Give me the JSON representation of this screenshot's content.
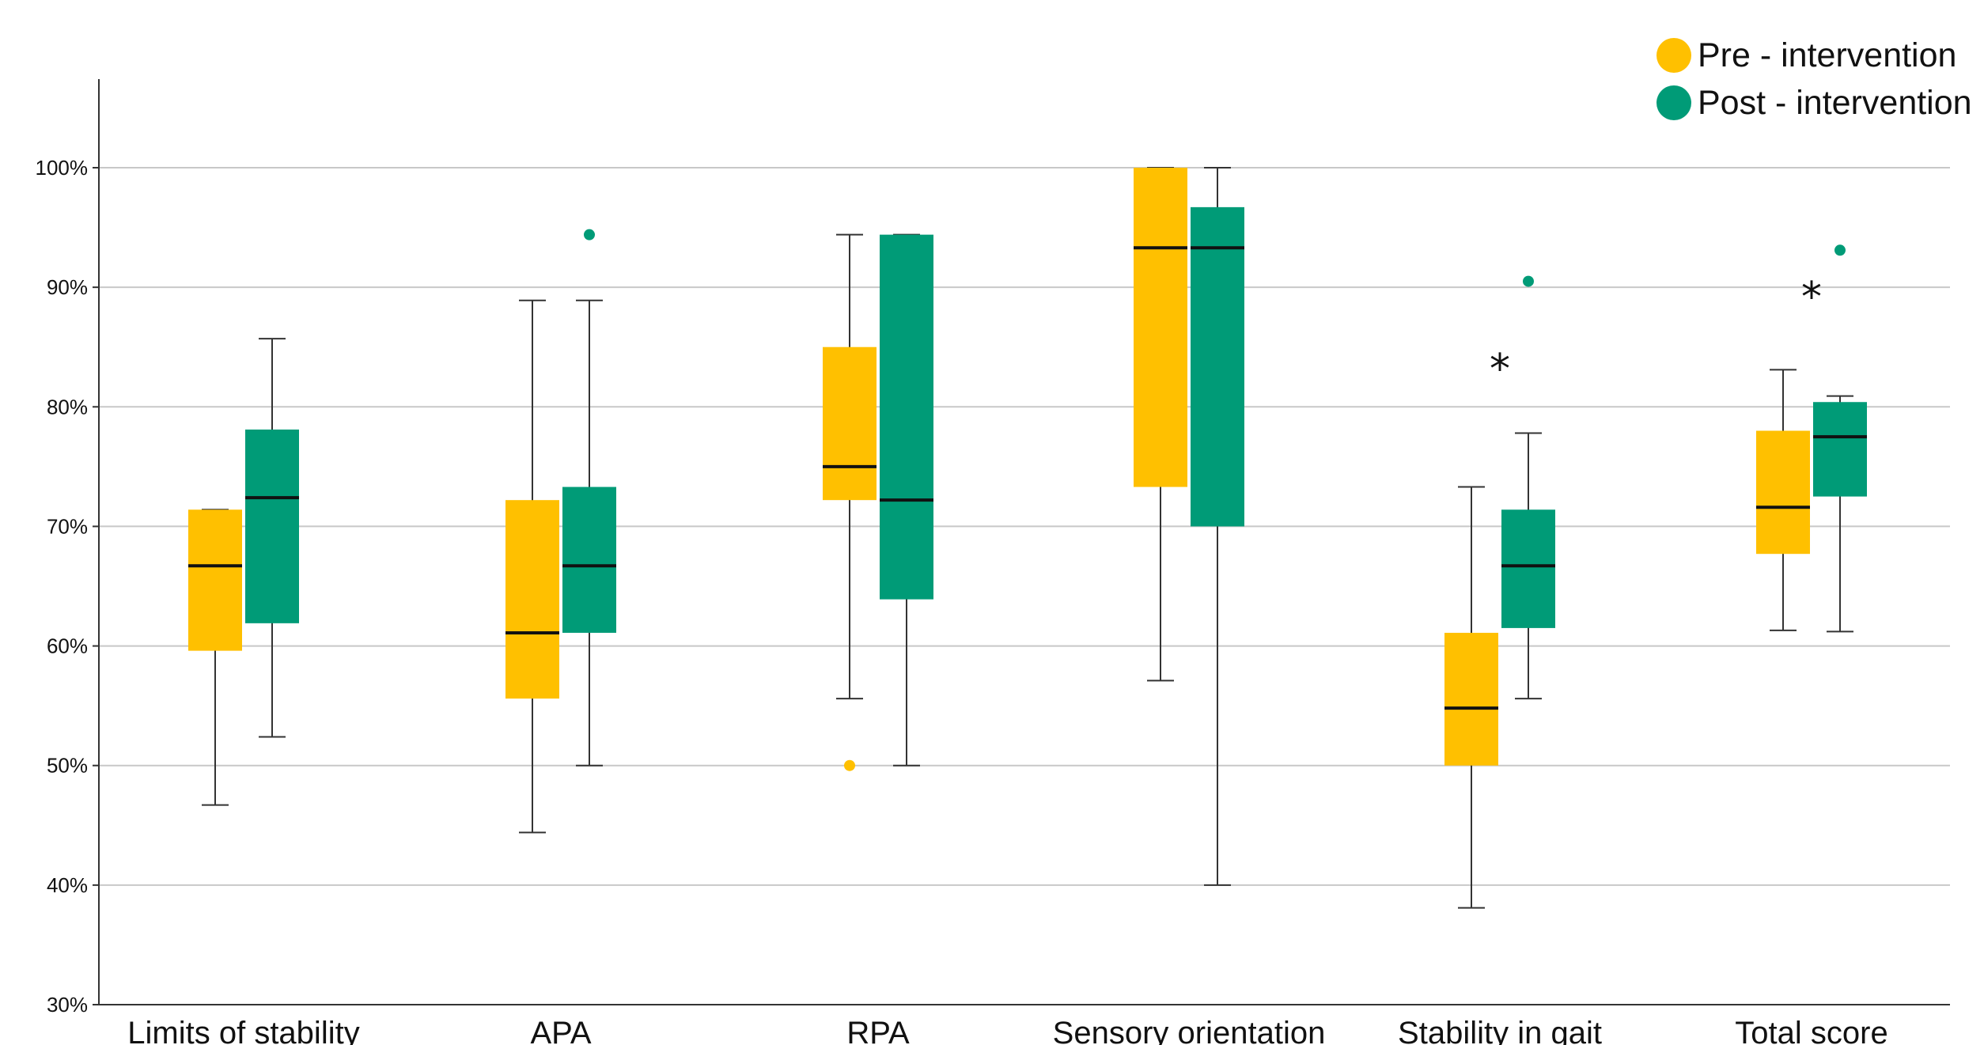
{
  "chart_data": {
    "type": "boxplot",
    "ylim": [
      30,
      100
    ],
    "y_ticks": [
      "30%",
      "40%",
      "50%",
      "60%",
      "70%",
      "80%",
      "90%",
      "100%"
    ],
    "y_tick_values": [
      30,
      40,
      50,
      60,
      70,
      80,
      90,
      100
    ],
    "grid": true,
    "legend_position": "top-right",
    "categories": [
      "Limits of stability",
      "APA",
      "RPA",
      "Sensory orientation",
      "Stability in gait",
      "Total score"
    ],
    "series": [
      {
        "name": "Pre - intervention",
        "color": "#FFC000",
        "boxes": [
          {
            "min": 46.7,
            "q1": 59.6,
            "median": 66.7,
            "q3": 71.4,
            "max": 71.4,
            "outliers": []
          },
          {
            "min": 44.4,
            "q1": 55.6,
            "median": 61.1,
            "q3": 72.2,
            "max": 88.9,
            "outliers": []
          },
          {
            "min": 55.6,
            "q1": 72.2,
            "median": 75.0,
            "q3": 85.0,
            "max": 94.4,
            "outliers": [
              50.0
            ]
          },
          {
            "min": 57.1,
            "q1": 73.3,
            "median": 93.3,
            "q3": 100.0,
            "max": 100.0,
            "outliers": []
          },
          {
            "min": 38.1,
            "q1": 50.0,
            "median": 54.8,
            "q3": 61.1,
            "max": 73.3,
            "outliers": []
          },
          {
            "min": 61.3,
            "q1": 67.7,
            "median": 71.6,
            "q3": 78.0,
            "max": 83.1,
            "outliers": []
          }
        ]
      },
      {
        "name": "Post - intervention",
        "color": "#009B77",
        "boxes": [
          {
            "min": 52.4,
            "q1": 61.9,
            "median": 72.4,
            "q3": 78.1,
            "max": 85.7,
            "outliers": []
          },
          {
            "min": 50.0,
            "q1": 61.1,
            "median": 66.7,
            "q3": 73.3,
            "max": 88.9,
            "outliers": [
              94.4
            ]
          },
          {
            "min": 50.0,
            "q1": 63.9,
            "median": 72.2,
            "q3": 94.4,
            "max": 94.4,
            "outliers": []
          },
          {
            "min": 40.0,
            "q1": 70.0,
            "median": 93.3,
            "q3": 96.7,
            "max": 100.0,
            "outliers": []
          },
          {
            "min": 55.6,
            "q1": 61.5,
            "median": 66.7,
            "q3": 71.4,
            "max": 77.8,
            "outliers": [
              90.5
            ]
          },
          {
            "min": 61.2,
            "q1": 72.5,
            "median": 77.5,
            "q3": 80.4,
            "max": 80.9,
            "outliers": [
              93.1
            ]
          }
        ]
      }
    ],
    "annotations": [
      {
        "text": "*",
        "category": "Stability in gait",
        "y": 84.0
      },
      {
        "text": "*",
        "category": "Total score",
        "y": 90.0
      }
    ]
  }
}
